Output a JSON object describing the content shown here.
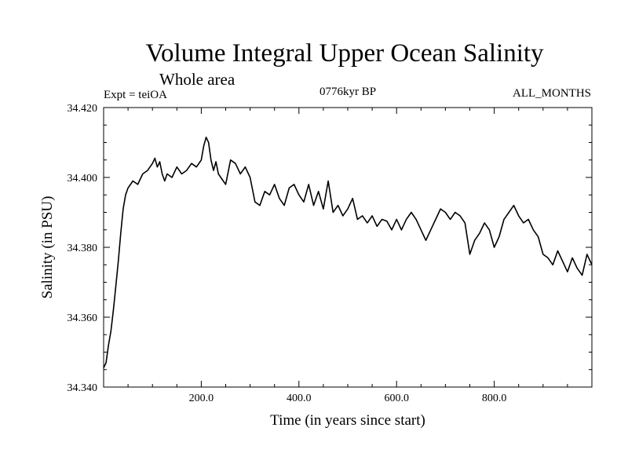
{
  "chart_data": {
    "type": "line",
    "title": "Volume Integral Upper Ocean Salinity",
    "subtitle": "Whole area",
    "experiment_label": "Expt = teiOA",
    "period_label": "0776kyr BP",
    "months_label": "ALL_MONTHS",
    "xlabel": "Time (in years since start)",
    "ylabel": "Salinity (in PSU)",
    "xlim": [
      0,
      1000
    ],
    "ylim": [
      34.34,
      34.42
    ],
    "x_tick_values": [
      200,
      400,
      600,
      800
    ],
    "x_tick_labels": [
      "200.0",
      "400.0",
      "600.0",
      "800.0"
    ],
    "y_tick_values": [
      34.34,
      34.36,
      34.38,
      34.4,
      34.42
    ],
    "y_tick_labels": [
      "34.340",
      "34.360",
      "34.380",
      "34.400",
      "34.420"
    ],
    "grid": false,
    "line_color": "#000000",
    "series": [
      {
        "name": "Salinity",
        "x": [
          0,
          5,
          10,
          15,
          20,
          25,
          30,
          35,
          40,
          45,
          50,
          60,
          70,
          80,
          90,
          100,
          105,
          110,
          115,
          120,
          125,
          130,
          140,
          150,
          160,
          170,
          180,
          190,
          200,
          205,
          210,
          215,
          220,
          225,
          230,
          235,
          240,
          250,
          260,
          270,
          280,
          290,
          300,
          310,
          320,
          330,
          340,
          350,
          360,
          370,
          380,
          390,
          400,
          410,
          420,
          430,
          440,
          450,
          460,
          470,
          480,
          490,
          500,
          510,
          520,
          530,
          540,
          550,
          560,
          570,
          580,
          590,
          600,
          610,
          620,
          630,
          640,
          650,
          660,
          670,
          680,
          690,
          700,
          710,
          720,
          730,
          740,
          750,
          760,
          770,
          780,
          790,
          800,
          810,
          820,
          830,
          840,
          850,
          860,
          870,
          880,
          890,
          900,
          910,
          920,
          930,
          940,
          950,
          960,
          970,
          980,
          990,
          1000
        ],
        "values": [
          34.3455,
          34.347,
          34.352,
          34.356,
          34.362,
          34.369,
          34.376,
          34.384,
          34.391,
          34.395,
          34.397,
          34.399,
          34.398,
          34.401,
          34.402,
          34.404,
          34.4055,
          34.403,
          34.4045,
          34.401,
          34.399,
          34.401,
          34.4,
          34.403,
          34.401,
          34.402,
          34.404,
          34.403,
          34.405,
          34.409,
          34.4115,
          34.41,
          34.405,
          34.402,
          34.4045,
          34.401,
          34.4,
          34.398,
          34.405,
          34.404,
          34.401,
          34.403,
          34.4,
          34.393,
          34.392,
          34.396,
          34.395,
          34.398,
          34.394,
          34.392,
          34.397,
          34.398,
          34.395,
          34.393,
          34.398,
          34.392,
          34.396,
          34.391,
          34.399,
          34.39,
          34.392,
          34.389,
          34.391,
          34.394,
          34.388,
          34.389,
          34.387,
          34.389,
          34.386,
          34.388,
          34.3875,
          34.385,
          34.388,
          34.385,
          34.388,
          34.39,
          34.388,
          34.385,
          34.382,
          34.385,
          34.388,
          34.391,
          34.39,
          34.388,
          34.39,
          34.389,
          34.387,
          34.378,
          34.382,
          34.384,
          34.387,
          34.385,
          34.38,
          34.383,
          34.388,
          34.39,
          34.392,
          34.389,
          34.387,
          34.388,
          34.385,
          34.383,
          34.378,
          34.377,
          34.375,
          34.379,
          34.376,
          34.373,
          34.377,
          34.374,
          34.372,
          34.378,
          34.375
        ]
      }
    ]
  }
}
